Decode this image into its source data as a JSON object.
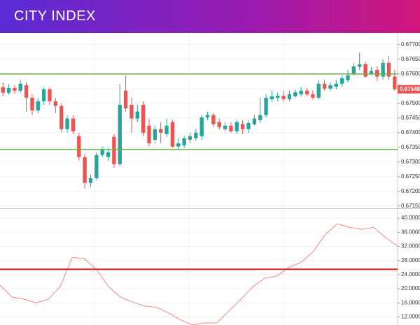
{
  "header": {
    "title": "CITY INDEX"
  },
  "chart_data": [
    {
      "type": "candlestick",
      "open": [
        0.67555,
        0.67536,
        0.67552,
        0.67543,
        0.67562,
        0.67519,
        0.67476,
        0.67507,
        0.67548,
        0.67507,
        0.67491,
        0.67412,
        0.67448,
        0.67388,
        0.67317,
        0.67229,
        0.67245,
        0.67324,
        0.67317,
        0.67386,
        0.67293,
        0.67543,
        0.67495,
        0.67448,
        0.67495,
        0.67424,
        0.67376,
        0.67412,
        0.67395,
        0.67436,
        0.67353,
        0.67357,
        0.67376,
        0.67381,
        0.67388,
        0.67452,
        0.6746,
        0.67436,
        0.67412,
        0.67424,
        0.67405,
        0.67429,
        0.67412,
        0.67429,
        0.67443,
        0.6746,
        0.67514,
        0.67519,
        0.67526,
        0.67514,
        0.67524,
        0.67531,
        0.67543,
        0.67531,
        0.67519,
        0.67567,
        0.6755,
        0.67557,
        0.67567,
        0.67579,
        0.67602,
        0.67624,
        0.67633,
        0.67602,
        0.67614,
        0.67591,
        0.67638,
        0.67591
      ],
      "high": [
        0.67571,
        0.67567,
        0.67562,
        0.67579,
        0.67571,
        0.67531,
        0.67519,
        0.67555,
        0.67555,
        0.67519,
        0.675,
        0.6746,
        0.6746,
        0.674,
        0.67329,
        0.67257,
        0.67333,
        0.67353,
        0.67348,
        0.67395,
        0.67567,
        0.67595,
        0.67519,
        0.67495,
        0.67507,
        0.67448,
        0.67424,
        0.67436,
        0.67448,
        0.67443,
        0.67381,
        0.67388,
        0.674,
        0.67412,
        0.6746,
        0.67472,
        0.67467,
        0.67448,
        0.67436,
        0.67436,
        0.67443,
        0.67443,
        0.67443,
        0.6746,
        0.67519,
        0.67531,
        0.67543,
        0.67538,
        0.67543,
        0.67543,
        0.67548,
        0.67555,
        0.67552,
        0.67543,
        0.67579,
        0.67579,
        0.67571,
        0.67579,
        0.67595,
        0.67614,
        0.67638,
        0.67674,
        0.67643,
        0.67624,
        0.67626,
        0.6765,
        0.67662,
        0.67614
      ],
      "low": [
        0.67524,
        0.67529,
        0.67533,
        0.67536,
        0.67472,
        0.6746,
        0.67467,
        0.67495,
        0.67495,
        0.67467,
        0.674,
        0.674,
        0.67395,
        0.67305,
        0.6721,
        0.67214,
        0.67238,
        0.67317,
        0.67305,
        0.67281,
        0.67286,
        0.67472,
        0.674,
        0.67436,
        0.67388,
        0.67353,
        0.67364,
        0.67364,
        0.67386,
        0.67348,
        0.67341,
        0.67348,
        0.67364,
        0.67372,
        0.67376,
        0.67443,
        0.67419,
        0.6741,
        0.67405,
        0.674,
        0.67395,
        0.67395,
        0.674,
        0.67424,
        0.67433,
        0.67452,
        0.67505,
        0.67507,
        0.67505,
        0.67507,
        0.67519,
        0.67524,
        0.67524,
        0.67514,
        0.67512,
        0.67543,
        0.67543,
        0.67548,
        0.67557,
        0.67571,
        0.67595,
        0.67614,
        0.67586,
        0.67595,
        0.67576,
        0.67581,
        0.67579,
        0.67543
      ],
      "close": [
        0.67536,
        0.67552,
        0.67543,
        0.67567,
        0.67519,
        0.67476,
        0.67507,
        0.67548,
        0.67507,
        0.67491,
        0.67412,
        0.67448,
        0.67405,
        0.67317,
        0.67229,
        0.67245,
        0.67324,
        0.67341,
        0.67333,
        0.67293,
        0.67495,
        0.67483,
        0.67448,
        0.67472,
        0.674,
        0.67364,
        0.67412,
        0.674,
        0.67424,
        0.67353,
        0.67364,
        0.67381,
        0.67388,
        0.674,
        0.67452,
        0.6746,
        0.67429,
        0.67419,
        0.67424,
        0.67405,
        0.67436,
        0.67412,
        0.67433,
        0.67448,
        0.6746,
        0.67519,
        0.67524,
        0.67526,
        0.67514,
        0.67531,
        0.67538,
        0.67543,
        0.67531,
        0.67519,
        0.67567,
        0.6755,
        0.67562,
        0.67567,
        0.67586,
        0.67595,
        0.67626,
        0.67633,
        0.67591,
        0.6761,
        0.67591,
        0.67638,
        0.67591,
        0.67548
      ],
      "up_color": "#26a69a",
      "down_color": "#ef5350",
      "ylim": [
        0.67145,
        0.6774
      ],
      "yticks": [
        {
          "value": 0.677,
          "label": "0.67700"
        },
        {
          "value": 0.6765,
          "label": "0.67650"
        },
        {
          "value": 0.676,
          "label": "0.67600"
        },
        {
          "value": 0.6755,
          "label": "0.67550"
        },
        {
          "value": 0.675,
          "label": "0.67500"
        },
        {
          "value": 0.6745,
          "label": "0.67450"
        },
        {
          "value": 0.674,
          "label": "0.67400"
        },
        {
          "value": 0.6735,
          "label": "0.67350"
        },
        {
          "value": 0.673,
          "label": "0.67300"
        },
        {
          "value": 0.6725,
          "label": "0.67250"
        },
        {
          "value": 0.672,
          "label": "0.67200"
        },
        {
          "value": 0.6715,
          "label": "0.67150"
        }
      ],
      "levels": {
        "values": [
          0.676,
          0.67343
        ],
        "color": "#6ab04c"
      },
      "last_price": {
        "value": 0.67548,
        "label": "0.67548"
      },
      "grid": true
    },
    {
      "type": "line",
      "values": [
        21.0,
        17.6,
        17.0,
        16.0,
        17.0,
        20.6,
        28.9,
        28.5,
        25.5,
        20.6,
        17.6,
        16.2,
        15.1,
        14.7,
        13.1,
        11.1,
        9.7,
        10.3,
        10.3,
        13.7,
        17.0,
        20.6,
        23.0,
        23.6,
        26.1,
        27.5,
        30.5,
        35.4,
        38.4,
        37.4,
        36.8,
        37.4,
        34.5,
        32.1
      ],
      "color": "#f28b82",
      "ylim": [
        9.7,
        42.4
      ],
      "yticks": [
        {
          "value": 40,
          "label": "40.0000"
        },
        {
          "value": 36,
          "label": "36.0000"
        },
        {
          "value": 32,
          "label": "32.0000"
        },
        {
          "value": 28,
          "label": "28.0000"
        },
        {
          "value": 24,
          "label": "24.0000"
        },
        {
          "value": 20,
          "label": "20.0000"
        },
        {
          "value": 16,
          "label": "16.0000"
        },
        {
          "value": 12,
          "label": "12.0000"
        }
      ],
      "level": {
        "value": 25.5,
        "color": "#e02020"
      },
      "grid": true
    }
  ]
}
